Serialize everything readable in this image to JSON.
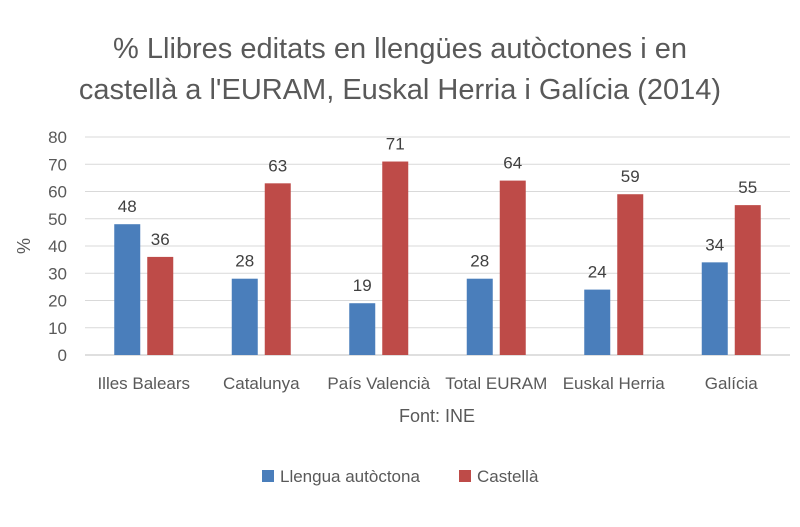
{
  "chart_data": {
    "type": "bar",
    "title_lines": [
      "% Llibres editats en llengües autòctones i en",
      "castellà a l'EURAM, Euskal Herria i Galícia (2014)"
    ],
    "ylabel": "%",
    "xlabel": "Font: INE",
    "ylim": [
      0,
      80
    ],
    "yticks": [
      0,
      10,
      20,
      30,
      40,
      50,
      60,
      70,
      80
    ],
    "categories": [
      "Illes Balears",
      "Catalunya",
      "País Valencià",
      "Total EURAM",
      "Euskal Herria",
      "Galícia"
    ],
    "series": [
      {
        "name": "Llengua autòctona",
        "color": "#4a7ebb",
        "values": [
          48,
          28,
          19,
          28,
          24,
          34
        ]
      },
      {
        "name": "Castellà",
        "color": "#be4b48",
        "values": [
          36,
          63,
          71,
          64,
          59,
          55
        ]
      }
    ],
    "grid": true,
    "data_labels": true,
    "legend_position": "bottom"
  }
}
